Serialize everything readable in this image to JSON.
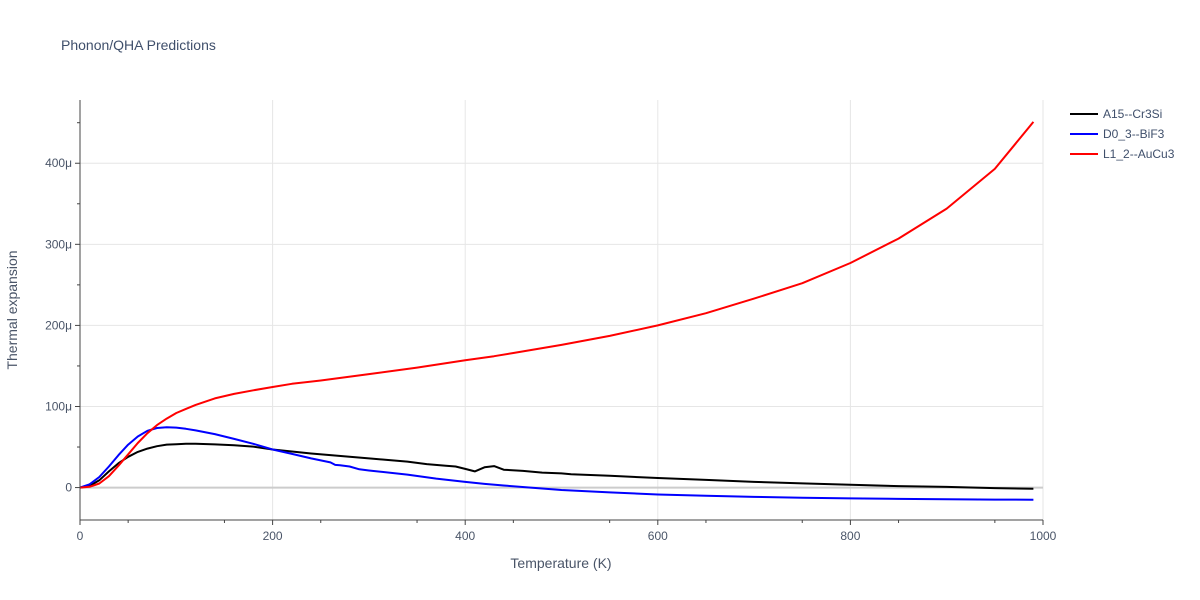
{
  "chart_data": {
    "type": "line",
    "title": "Phonon/QHA Predictions",
    "xlabel": "Temperature (K)",
    "ylabel": "Thermal expansion",
    "xlim": [
      0,
      1000
    ],
    "ylim": [
      -40,
      478
    ],
    "x_ticks": [
      0,
      200,
      400,
      600,
      800,
      1000
    ],
    "x_tick_labels": [
      "0",
      "200",
      "400",
      "600",
      "800",
      "1000"
    ],
    "y_ticks": [
      0,
      100,
      200,
      300,
      400
    ],
    "y_tick_labels": [
      "0",
      "100μ",
      "200μ",
      "300μ",
      "400μ"
    ],
    "grid": true,
    "legend": "top-right",
    "series": [
      {
        "name": "A15--Cr3Si",
        "color": "#000000",
        "points": [
          [
            0,
            0
          ],
          [
            10,
            2
          ],
          [
            20,
            9
          ],
          [
            30,
            20
          ],
          [
            40,
            30
          ],
          [
            50,
            38
          ],
          [
            60,
            44
          ],
          [
            70,
            48
          ],
          [
            80,
            51
          ],
          [
            90,
            53
          ],
          [
            100,
            53.5
          ],
          [
            110,
            54
          ],
          [
            120,
            54
          ],
          [
            140,
            53.3
          ],
          [
            160,
            52.3
          ],
          [
            180,
            50.5
          ],
          [
            200,
            47
          ],
          [
            220,
            44.5
          ],
          [
            240,
            42
          ],
          [
            260,
            40
          ],
          [
            280,
            38
          ],
          [
            300,
            36
          ],
          [
            320,
            34
          ],
          [
            340,
            32
          ],
          [
            360,
            29
          ],
          [
            380,
            27
          ],
          [
            390,
            26
          ],
          [
            400,
            23
          ],
          [
            410,
            20
          ],
          [
            420,
            25
          ],
          [
            430,
            26.5
          ],
          [
            440,
            22
          ],
          [
            460,
            20.5
          ],
          [
            480,
            18.5
          ],
          [
            500,
            17.5
          ],
          [
            510,
            16.5
          ],
          [
            550,
            14.5
          ],
          [
            600,
            11.8
          ],
          [
            650,
            9.5
          ],
          [
            700,
            7
          ],
          [
            750,
            5.2
          ],
          [
            800,
            3.5
          ],
          [
            850,
            1.8
          ],
          [
            900,
            0.8
          ],
          [
            950,
            -0.6
          ],
          [
            990,
            -1.5
          ]
        ]
      },
      {
        "name": "D0_3--BiF3",
        "color": "#0000ff",
        "points": [
          [
            0,
            0
          ],
          [
            10,
            4
          ],
          [
            20,
            13
          ],
          [
            30,
            26
          ],
          [
            40,
            40
          ],
          [
            50,
            53
          ],
          [
            60,
            63
          ],
          [
            70,
            70
          ],
          [
            80,
            73.5
          ],
          [
            90,
            74.5
          ],
          [
            100,
            74
          ],
          [
            110,
            72.5
          ],
          [
            120,
            70.5
          ],
          [
            140,
            66
          ],
          [
            160,
            60
          ],
          [
            180,
            54
          ],
          [
            200,
            47
          ],
          [
            220,
            41.5
          ],
          [
            240,
            36
          ],
          [
            260,
            31
          ],
          [
            265,
            28
          ],
          [
            270,
            27.5
          ],
          [
            280,
            26
          ],
          [
            290,
            22.5
          ],
          [
            300,
            21
          ],
          [
            340,
            16
          ],
          [
            370,
            11
          ],
          [
            400,
            7
          ],
          [
            420,
            4.5
          ],
          [
            440,
            2.5
          ],
          [
            500,
            -3
          ],
          [
            550,
            -6
          ],
          [
            600,
            -8.5
          ],
          [
            650,
            -10
          ],
          [
            700,
            -11.5
          ],
          [
            750,
            -12.5
          ],
          [
            800,
            -13.3
          ],
          [
            850,
            -14
          ],
          [
            900,
            -14.4
          ],
          [
            950,
            -14.8
          ],
          [
            990,
            -15
          ]
        ]
      },
      {
        "name": "L1_2--AuCu3",
        "color": "#ff0000",
        "points": [
          [
            0,
            0
          ],
          [
            10,
            1
          ],
          [
            20,
            5
          ],
          [
            30,
            14
          ],
          [
            40,
            27
          ],
          [
            50,
            41
          ],
          [
            60,
            55
          ],
          [
            70,
            67
          ],
          [
            80,
            77
          ],
          [
            90,
            85
          ],
          [
            100,
            92
          ],
          [
            110,
            97
          ],
          [
            120,
            102
          ],
          [
            140,
            110
          ],
          [
            160,
            115.5
          ],
          [
            180,
            120
          ],
          [
            200,
            124
          ],
          [
            220,
            128
          ],
          [
            250,
            132
          ],
          [
            300,
            140
          ],
          [
            350,
            148
          ],
          [
            400,
            157
          ],
          [
            430,
            162
          ],
          [
            450,
            166
          ],
          [
            500,
            176
          ],
          [
            550,
            187
          ],
          [
            600,
            200
          ],
          [
            650,
            215
          ],
          [
            700,
            233
          ],
          [
            750,
            252
          ],
          [
            800,
            277
          ],
          [
            850,
            307
          ],
          [
            900,
            344
          ],
          [
            950,
            393
          ],
          [
            990,
            451
          ]
        ]
      }
    ]
  }
}
